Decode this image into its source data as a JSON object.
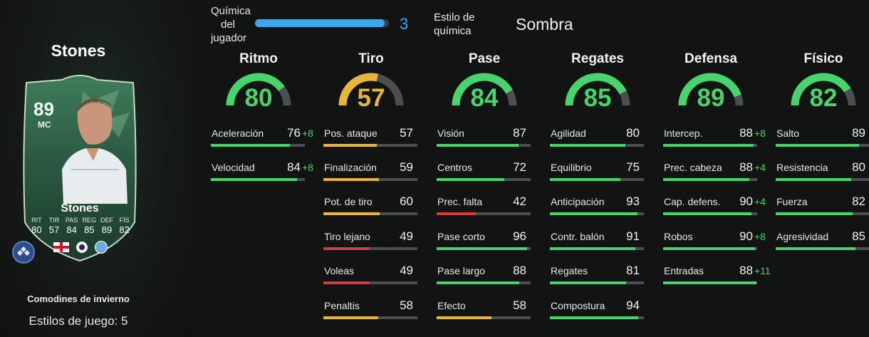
{
  "player": {
    "name": "Stones",
    "card": {
      "rating": "89",
      "position": "MC",
      "name": "Stones",
      "stat_labels": [
        "RIT",
        "TIR",
        "PAS",
        "REG",
        "DEF",
        "FÍS"
      ],
      "stat_values": [
        "80",
        "57",
        "84",
        "85",
        "89",
        "82"
      ]
    },
    "promo": "Comodines de invierno",
    "playstyles": "Estilos de juego: 5"
  },
  "chemistry": {
    "label_lines": [
      "Química",
      "del",
      "jugador"
    ],
    "value": "3",
    "fraction": 0.97,
    "style_label_lines": [
      "Estilo de",
      "química"
    ],
    "style_value": "Sombra"
  },
  "colors": {
    "green": "#47d46c",
    "yellow": "#e8b53b",
    "red": "#d63a3a",
    "blue": "#3aa7f0"
  },
  "categories": [
    {
      "title": "Ritmo",
      "value": "80",
      "level": 80,
      "color": "green",
      "stats": [
        {
          "name": "Aceleración",
          "value": "76",
          "bonus": "+8",
          "level": 84,
          "color": "green"
        },
        {
          "name": "Velocidad",
          "value": "84",
          "bonus": "+8",
          "level": 92,
          "color": "green"
        }
      ]
    },
    {
      "title": "Tiro",
      "value": "57",
      "level": 57,
      "color": "yellow",
      "stats": [
        {
          "name": "Pos. ataque",
          "value": "57",
          "bonus": "",
          "level": 57,
          "color": "yellow"
        },
        {
          "name": "Finalización",
          "value": "59",
          "bonus": "",
          "level": 59,
          "color": "yellow"
        },
        {
          "name": "Pot. de tiro",
          "value": "60",
          "bonus": "",
          "level": 60,
          "color": "yellow"
        },
        {
          "name": "Tiro lejano",
          "value": "49",
          "bonus": "",
          "level": 49,
          "color": "red"
        },
        {
          "name": "Voleas",
          "value": "49",
          "bonus": "",
          "level": 49,
          "color": "red"
        },
        {
          "name": "Penaltis",
          "value": "58",
          "bonus": "",
          "level": 58,
          "color": "yellow"
        }
      ]
    },
    {
      "title": "Pase",
      "value": "84",
      "level": 84,
      "color": "green",
      "stats": [
        {
          "name": "Visión",
          "value": "87",
          "bonus": "",
          "level": 87,
          "color": "green"
        },
        {
          "name": "Centros",
          "value": "72",
          "bonus": "",
          "level": 72,
          "color": "green"
        },
        {
          "name": "Prec. falta",
          "value": "42",
          "bonus": "",
          "level": 42,
          "color": "red"
        },
        {
          "name": "Pase corto",
          "value": "96",
          "bonus": "",
          "level": 96,
          "color": "green"
        },
        {
          "name": "Pase largo",
          "value": "88",
          "bonus": "",
          "level": 88,
          "color": "green"
        },
        {
          "name": "Efecto",
          "value": "58",
          "bonus": "",
          "level": 58,
          "color": "yellow"
        }
      ]
    },
    {
      "title": "Regates",
      "value": "85",
      "level": 85,
      "color": "green",
      "stats": [
        {
          "name": "Agilidad",
          "value": "80",
          "bonus": "",
          "level": 80,
          "color": "green"
        },
        {
          "name": "Equilibrio",
          "value": "75",
          "bonus": "",
          "level": 75,
          "color": "green"
        },
        {
          "name": "Anticipación",
          "value": "93",
          "bonus": "",
          "level": 93,
          "color": "green"
        },
        {
          "name": "Contr. balón",
          "value": "91",
          "bonus": "",
          "level": 91,
          "color": "green"
        },
        {
          "name": "Regates",
          "value": "81",
          "bonus": "",
          "level": 81,
          "color": "green"
        },
        {
          "name": "Compostura",
          "value": "94",
          "bonus": "",
          "level": 94,
          "color": "green"
        }
      ]
    },
    {
      "title": "Defensa",
      "value": "89",
      "level": 89,
      "color": "green",
      "stats": [
        {
          "name": "Intercep.",
          "value": "88",
          "bonus": "+8",
          "level": 96,
          "color": "green"
        },
        {
          "name": "Prec. cabeza",
          "value": "88",
          "bonus": "+4",
          "level": 92,
          "color": "green"
        },
        {
          "name": "Cap. defens.",
          "value": "90",
          "bonus": "+4",
          "level": 94,
          "color": "green"
        },
        {
          "name": "Robos",
          "value": "90",
          "bonus": "+8",
          "level": 98,
          "color": "green"
        },
        {
          "name": "Entradas",
          "value": "88",
          "bonus": "+11",
          "level": 99,
          "color": "green"
        }
      ]
    },
    {
      "title": "Físico",
      "value": "82",
      "level": 82,
      "color": "green",
      "stats": [
        {
          "name": "Salto",
          "value": "89",
          "bonus": "",
          "level": 89,
          "color": "green"
        },
        {
          "name": "Resistencia",
          "value": "80",
          "bonus": "",
          "level": 80,
          "color": "green"
        },
        {
          "name": "Fuerza",
          "value": "82",
          "bonus": "",
          "level": 82,
          "color": "green"
        },
        {
          "name": "Agresividad",
          "value": "85",
          "bonus": "",
          "level": 85,
          "color": "green"
        }
      ]
    }
  ]
}
